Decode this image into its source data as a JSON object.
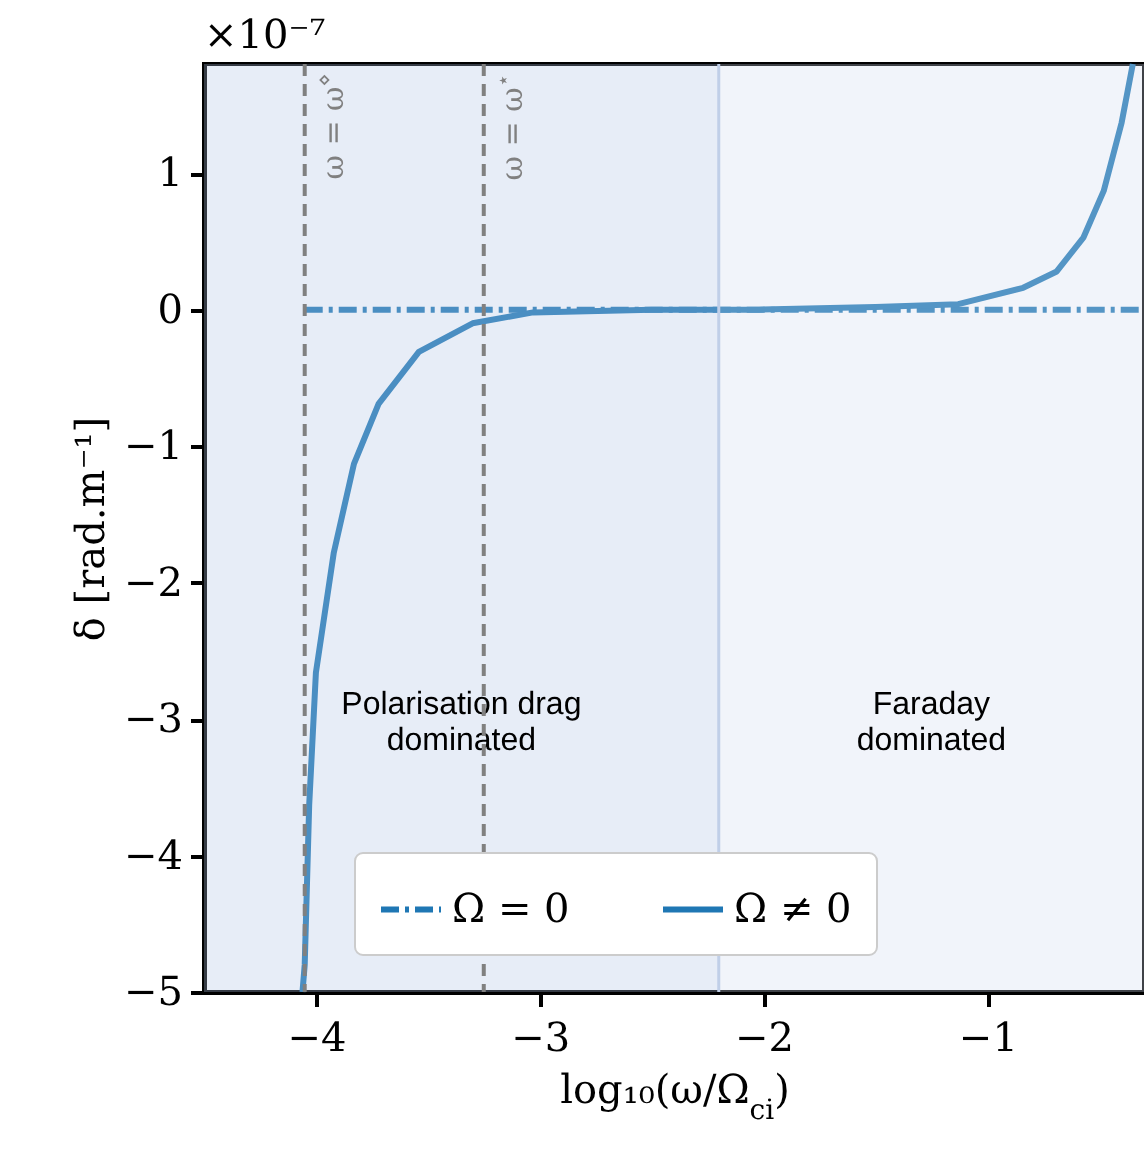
{
  "chart_data": {
    "type": "line",
    "xlabel": "log₁₀(ω/Ω$_{ci}$)",
    "ylabel": "δ [rad.m⁻¹]",
    "annotations": [
      "×10⁻⁷"
    ],
    "xlim": [
      -4.5,
      -0.3
    ],
    "ylim": [
      -5,
      1.8
    ],
    "xticks": [
      -4,
      -3,
      -2,
      -1
    ],
    "yticks": [
      -5,
      -4,
      -3,
      -2,
      -1,
      0,
      1
    ],
    "series": [
      {
        "name": "Ω = 0",
        "color": "#1f77b4",
        "line_style": "dashdot",
        "x": [
          -4.05,
          -0.3
        ],
        "values": [
          0,
          0
        ]
      },
      {
        "name": "Ω ≠ 0",
        "color": "#1f77b4",
        "line_style": "solid",
        "x": [
          -4.06,
          -4.05,
          -4.03,
          -4.0,
          -3.92,
          -3.83,
          -3.72,
          -3.54,
          -3.3,
          -3.03,
          -2.5,
          -2.02,
          -1.5,
          -1.13,
          -0.84,
          -0.69,
          -0.57,
          -0.48,
          -0.4,
          -0.35
        ],
        "values": [
          -5,
          -4.8,
          -3.63,
          -2.66,
          -1.78,
          -1.13,
          -0.69,
          -0.31,
          -0.1,
          -0.02,
          0,
          0,
          0.02,
          0.04,
          0.16,
          0.28,
          0.53,
          0.87,
          1.37,
          1.8
        ]
      }
    ],
    "bands": [
      {
        "axis": "x",
        "from": -4.5,
        "to": -2.2,
        "label": "Polarisation drag\ndominated",
        "color": "#b0c4e6"
      },
      {
        "axis": "x",
        "from": -2.2,
        "to": -0.3,
        "label": "Faraday\ndominated",
        "color": "#d0dcef"
      }
    ],
    "ref_lines": [
      {
        "axis": "x",
        "value": -4.05,
        "label": "ω = ω$^{⋄}$",
        "color": "#808080",
        "line_style": "dashed"
      },
      {
        "axis": "x",
        "value": -3.25,
        "label": "ω = ω$^{⋆}$",
        "color": "#808080",
        "line_style": "dashed"
      },
      {
        "axis": "x",
        "value": -2.2,
        "color": "#c0cfe8",
        "line_style": "solid"
      }
    ],
    "marker": "none",
    "grid": false,
    "legend": "bottom"
  }
}
